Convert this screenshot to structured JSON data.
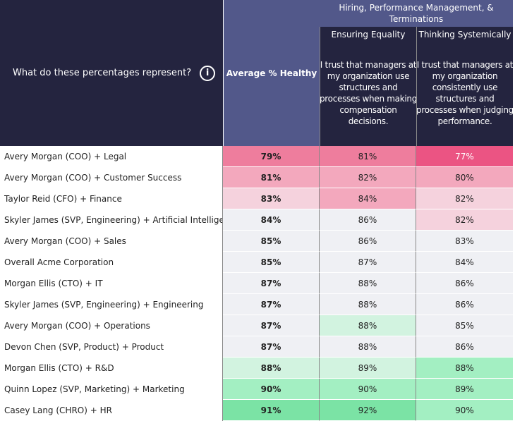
{
  "header": {
    "question": "What do these percentages represent?",
    "info_icon": "info-circle-icon",
    "average_label": "Average % Healthy",
    "group_label": "Hiring, Performance Management, & Terminations",
    "columns": [
      {
        "title": "Ensuring Equality",
        "lines": [
          "I trust that managers at",
          "my organization use",
          "structures and",
          "processes when making",
          "compensation",
          "decisions."
        ]
      },
      {
        "title": "Thinking Systemically",
        "lines": [
          "I trust that managers at",
          "my organization",
          "consistently use",
          "structures and",
          "processes when judging",
          "performance."
        ]
      }
    ]
  },
  "colors": {
    "pink_strong": "#eb5483",
    "pink_dark": "#ee7d9d",
    "pink_medium": "#f3a8bd",
    "pink_light": "#f5d2dd",
    "neutral": "#eff0f4",
    "green_light": "#d2f3e0",
    "green": "#a3efc2",
    "green_dark": "#7be3a5"
  },
  "rows": [
    {
      "label": "Avery Morgan (COO) + Legal",
      "values": [
        "79%",
        "81%",
        "77%"
      ],
      "colors": [
        "pink_dark",
        "pink_dark",
        "pink_strong"
      ]
    },
    {
      "label": "Avery Morgan (COO) + Customer Success",
      "values": [
        "81%",
        "82%",
        "80%"
      ],
      "colors": [
        "pink_medium",
        "pink_medium",
        "pink_medium"
      ]
    },
    {
      "label": "Taylor Reid (CFO) + Finance",
      "values": [
        "83%",
        "84%",
        "82%"
      ],
      "colors": [
        "pink_light",
        "pink_medium",
        "pink_light"
      ]
    },
    {
      "label": "Skyler James (SVP, Engineering) + Artificial Intelligen..",
      "values": [
        "84%",
        "86%",
        "82%"
      ],
      "colors": [
        "neutral",
        "neutral",
        "pink_light"
      ]
    },
    {
      "label": "Avery Morgan (COO) + Sales",
      "values": [
        "85%",
        "86%",
        "83%"
      ],
      "colors": [
        "neutral",
        "neutral",
        "neutral"
      ]
    },
    {
      "label": "Overall Acme Corporation",
      "values": [
        "85%",
        "87%",
        "84%"
      ],
      "colors": [
        "neutral",
        "neutral",
        "neutral"
      ]
    },
    {
      "label": "Morgan Ellis (CTO) + IT",
      "values": [
        "87%",
        "88%",
        "86%"
      ],
      "colors": [
        "neutral",
        "neutral",
        "neutral"
      ]
    },
    {
      "label": "Skyler James (SVP, Engineering) + Engineering",
      "values": [
        "87%",
        "88%",
        "86%"
      ],
      "colors": [
        "neutral",
        "neutral",
        "neutral"
      ]
    },
    {
      "label": "Avery Morgan (COO) + Operations",
      "values": [
        "87%",
        "88%",
        "85%"
      ],
      "colors": [
        "neutral",
        "green_light",
        "neutral"
      ]
    },
    {
      "label": "Devon Chen (SVP, Product) + Product",
      "values": [
        "87%",
        "88%",
        "86%"
      ],
      "colors": [
        "neutral",
        "neutral",
        "neutral"
      ]
    },
    {
      "label": "Morgan Ellis (CTO) + R&D",
      "values": [
        "88%",
        "89%",
        "88%"
      ],
      "colors": [
        "green_light",
        "green_light",
        "green"
      ]
    },
    {
      "label": "Quinn Lopez (SVP, Marketing) + Marketing",
      "values": [
        "90%",
        "90%",
        "89%"
      ],
      "colors": [
        "green",
        "green",
        "green"
      ]
    },
    {
      "label": "Casey Lang (CHRO) + HR",
      "values": [
        "91%",
        "92%",
        "90%"
      ],
      "colors": [
        "green_dark",
        "green_dark",
        "green"
      ]
    }
  ]
}
